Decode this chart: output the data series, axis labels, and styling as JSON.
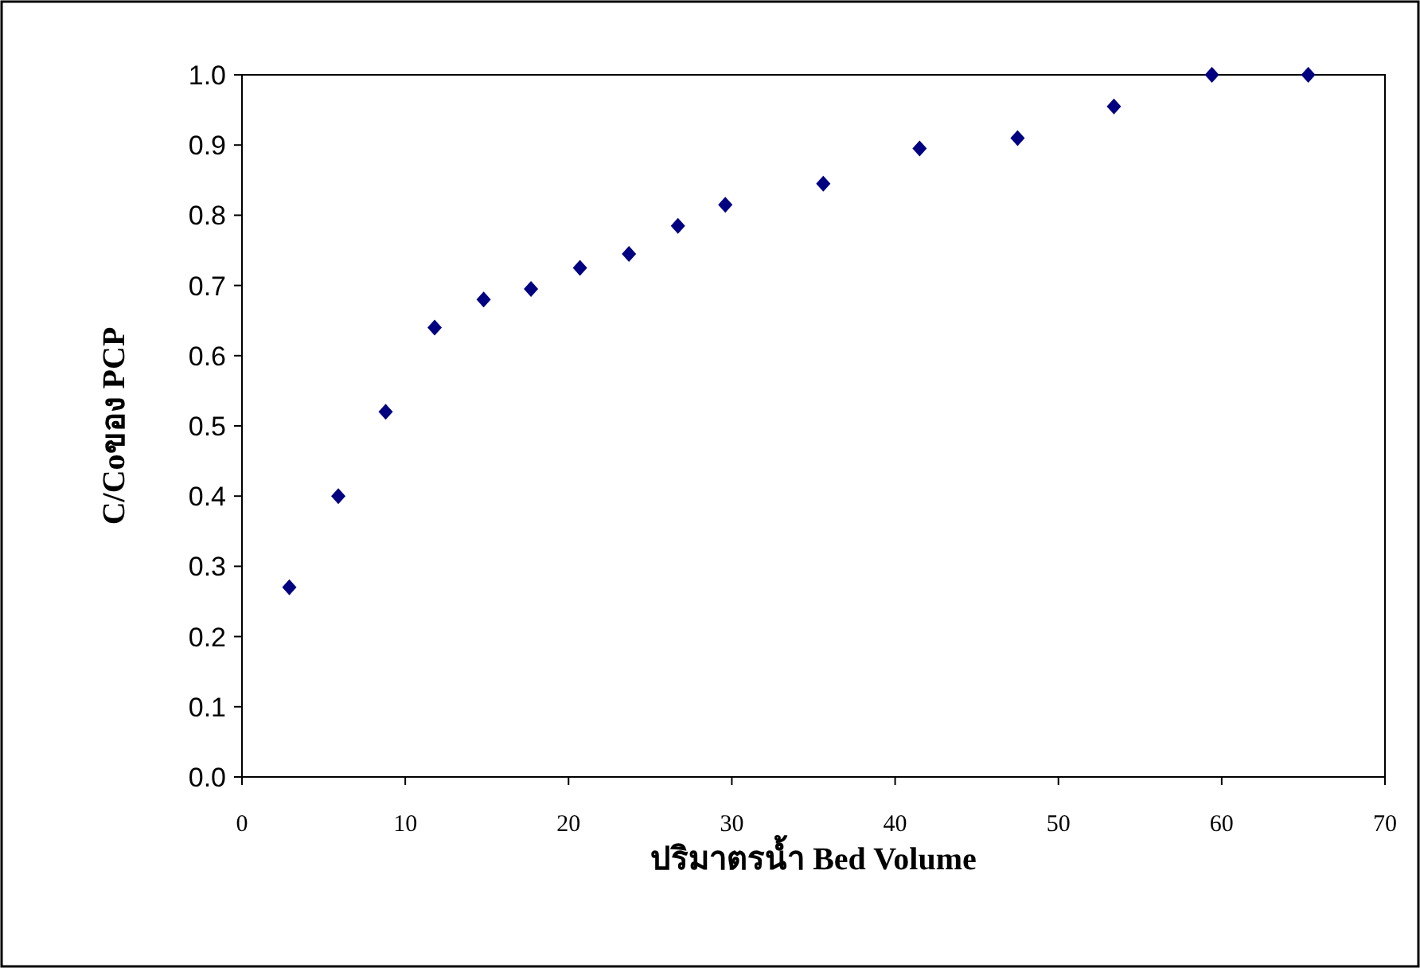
{
  "chart_data": {
    "type": "scatter",
    "xlabel": "ปริมาตรน้ำ Bed Volume",
    "ylabel": "C/Coของ PCP",
    "x": [
      2.9,
      5.9,
      8.8,
      11.8,
      14.8,
      17.7,
      20.7,
      23.7,
      26.7,
      29.6,
      35.6,
      41.5,
      47.5,
      53.4,
      59.4,
      65.3
    ],
    "series": [
      {
        "color": "#000080",
        "values": [
          0.27,
          0.4,
          0.52,
          0.64,
          0.68,
          0.695,
          0.725,
          0.745,
          0.785,
          0.815,
          0.845,
          0.895,
          0.91,
          0.955,
          1.0,
          1.0
        ]
      }
    ],
    "marker": "diamond",
    "grid": false,
    "xlim": [
      0,
      70
    ],
    "xticks": [
      0,
      10,
      20,
      30,
      40,
      50,
      60,
      70
    ],
    "ylim": [
      0,
      1.0
    ],
    "yticks": [
      {
        "value": 0,
        "label": "0.0"
      },
      {
        "value": 0.1,
        "label": "0.1"
      },
      {
        "value": 0.2,
        "label": "0.2"
      },
      {
        "value": 0.3,
        "label": "0.3"
      },
      {
        "value": 0.4,
        "label": "0.4"
      },
      {
        "value": 0.5,
        "label": "0.5"
      },
      {
        "value": 0.6,
        "label": "0.6"
      },
      {
        "value": 0.7,
        "label": "0.7"
      },
      {
        "value": 0.8,
        "label": "0.8"
      },
      {
        "value": 0.9,
        "label": "0.9"
      },
      {
        "value": 1.0,
        "label": "1.0"
      }
    ]
  }
}
